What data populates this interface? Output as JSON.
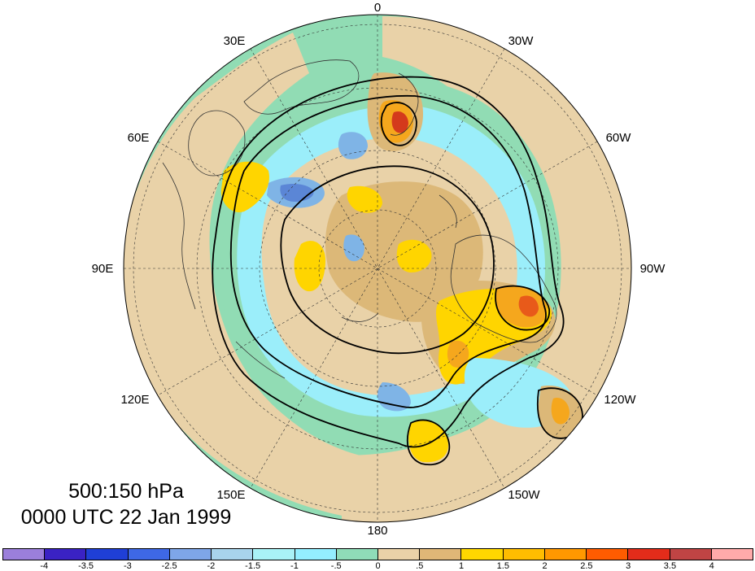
{
  "title": {
    "line1": "500:150 hPa",
    "line2": "0000 UTC 22 Jan 1999"
  },
  "longitude_labels": {
    "top": "0",
    "top_right": "30W",
    "right_upper": "60W",
    "right": "90W",
    "right_lower": "120W",
    "bottom_right": "150W",
    "bottom": "180",
    "bottom_left": "150E",
    "left_lower": "120E",
    "left": "90E",
    "left_upper": "60E",
    "top_left": "30E"
  },
  "colorbar": {
    "colors": [
      "#9b7fdb",
      "#3a22c4",
      "#1f3fd6",
      "#3e68e6",
      "#7ea6e8",
      "#a8d4ec",
      "#a9f2f6",
      "#94efff",
      "#8fdcb8",
      "#ead2a8",
      "#e0b777",
      "#ffd700",
      "#ffbd00",
      "#ff9800",
      "#ff5c00",
      "#e32c1a",
      "#c04444",
      "#ffaaaa"
    ],
    "labels": [
      "-4",
      "-3.5",
      "-3",
      "-2.5",
      "-2",
      "-1.5",
      "-1",
      "-.5",
      "0",
      ".5",
      "1",
      "1.5",
      "2",
      "2.5",
      "3",
      "3.5",
      "4"
    ]
  },
  "map_colors": {
    "ocean_green": "#91dcb4",
    "tan": "#e9d2a8",
    "dark_tan": "#dcb878",
    "yellow": "#ffd500",
    "orange": "#f5a71d",
    "red": "#d43a1c",
    "cyan": "#9beefa",
    "light_blue": "#7fb4e6",
    "blue": "#5b86d6"
  }
}
